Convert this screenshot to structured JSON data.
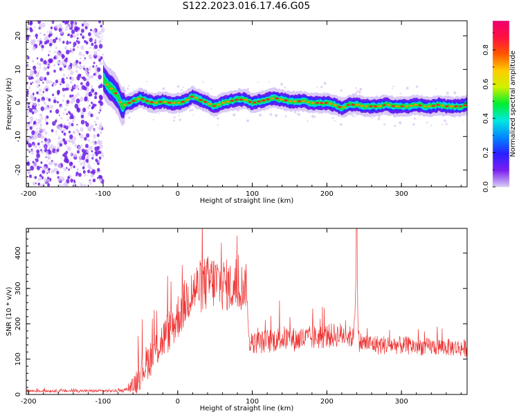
{
  "title": "S122.2023.016.17.46.G05",
  "colors": {
    "axis": "#000000",
    "snr_line": "#ee3333",
    "spectrogram_low": "#dcc8f4",
    "spectrogram_mid": "#6e1fe6",
    "background": "#ffffff"
  },
  "chart_data": [
    {
      "type": "heatmap",
      "description_hidden": true,
      "xlabel": "Height of straight line (km)",
      "ylabel": "Frequency (Hz)",
      "xlim": [
        -203,
        388
      ],
      "ylim": [
        -25,
        24.5
      ],
      "x_ticks": [
        -200,
        -100,
        0,
        100,
        200,
        300
      ],
      "y_ticks": [
        -20,
        -10,
        0,
        10,
        20
      ],
      "grid": false,
      "colorbar": {
        "label": "Normalized spectral amplitude",
        "range": [
          0,
          0.97
        ],
        "ticks": [
          0.0,
          0.2,
          0.4,
          0.6,
          0.8
        ],
        "colormap": [
          "#d8ccf6",
          "#7a1ff0",
          "#2a20ff",
          "#0088ff",
          "#00e8e0",
          "#00ee30",
          "#d0f000",
          "#ffcc00",
          "#ff5500",
          "#ff1040",
          "#f00070"
        ]
      },
      "noise_region": {
        "x_range": [
          -203,
          -100
        ],
        "y_range": [
          -25,
          24.5
        ]
      },
      "signal_track": {
        "x": [
          -100,
          -95,
          -90,
          -85,
          -80,
          -75,
          -70,
          -60,
          -50,
          -40,
          -30,
          -20,
          -10,
          0,
          10,
          20,
          30,
          40,
          50,
          60,
          70,
          80,
          90,
          100,
          110,
          120,
          130,
          140,
          150,
          160,
          170,
          180,
          190,
          200,
          210,
          220,
          230,
          240,
          250,
          260,
          270,
          280,
          290,
          300,
          310,
          320,
          330,
          340,
          350,
          360,
          370,
          380,
          388
        ],
        "y": [
          7.5,
          5.5,
          4.5,
          3.5,
          2.0,
          -1.0,
          -0.5,
          0.5,
          1.5,
          0.5,
          0.0,
          0.5,
          0.0,
          0.0,
          0.5,
          2.0,
          1.0,
          0.0,
          -1.0,
          0.0,
          0.5,
          1.0,
          1.0,
          0.0,
          0.5,
          1.0,
          1.5,
          1.0,
          0.5,
          0.5,
          0.5,
          0.0,
          0.0,
          0.0,
          -0.5,
          -1.5,
          -0.5,
          -0.5,
          -1.0,
          -1.0,
          -1.0,
          -0.5,
          -1.0,
          -1.0,
          -1.0,
          -0.5,
          -1.0,
          -1.0,
          -0.5,
          -1.0,
          -1.0,
          -1.0,
          -0.5
        ]
      }
    },
    {
      "type": "line",
      "xlabel": "Height of straight line (km)",
      "ylabel": "SNR (10 * v/v)",
      "xlim": [
        -203,
        388
      ],
      "ylim": [
        0,
        470
      ],
      "x_ticks": [
        -200,
        -100,
        0,
        100,
        200,
        300
      ],
      "y_ticks": [
        0,
        100,
        200,
        300,
        400
      ],
      "grid": false,
      "series": [
        {
          "x": [
            -203,
            -150,
            -100,
            -75,
            -65,
            -55,
            -45,
            -35,
            -25,
            -15,
            -5,
            5,
            15,
            25,
            35,
            45,
            55,
            65,
            75,
            85,
            93,
            95,
            100,
            120,
            140,
            160,
            180,
            200,
            220,
            235,
            238,
            240,
            242,
            250,
            270,
            290,
            310,
            330,
            350,
            370,
            388
          ],
          "y": [
            10,
            10,
            10,
            10,
            15,
            40,
            80,
            110,
            140,
            170,
            200,
            240,
            280,
            300,
            310,
            320,
            315,
            310,
            300,
            305,
            310,
            150,
            145,
            150,
            160,
            155,
            160,
            165,
            170,
            160,
            250,
            460,
            150,
            145,
            140,
            140,
            138,
            135,
            135,
            133,
            130
          ],
          "spread": [
            4,
            4,
            4,
            4,
            8,
            40,
            50,
            55,
            55,
            60,
            65,
            70,
            70,
            75,
            80,
            80,
            80,
            75,
            70,
            70,
            60,
            30,
            30,
            35,
            35,
            35,
            35,
            35,
            35,
            30,
            30,
            10,
            30,
            28,
            28,
            26,
            26,
            25,
            25,
            25,
            25
          ]
        }
      ]
    }
  ]
}
